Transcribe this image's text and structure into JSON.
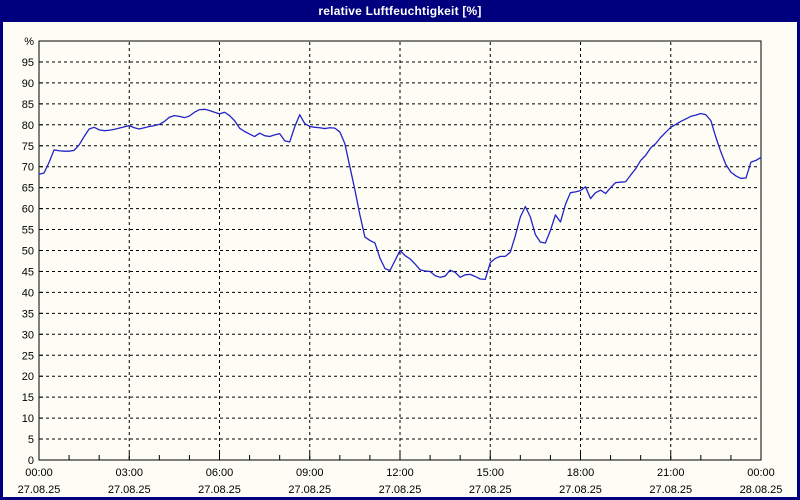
{
  "window": {
    "title": "relative Luftfeuchtigkeit [%]"
  },
  "colors": {
    "title_bar_bg": "#00007f",
    "title_text": "#ffffff",
    "window_border": "#00007f",
    "background": "#fdfdf6",
    "plot_frame": "#000000",
    "grid": "#000000",
    "axis_text": "#000000",
    "series_line": "#2323c8"
  },
  "chart_data": {
    "type": "line",
    "title": "relative Luftfeuchtigkeit [%]",
    "ylabel": "%",
    "ylim": [
      0,
      100
    ],
    "y_ticks": [
      0,
      5,
      10,
      15,
      20,
      25,
      30,
      35,
      40,
      45,
      50,
      55,
      60,
      65,
      70,
      75,
      80,
      85,
      90,
      95
    ],
    "grid": "dashed",
    "legend_position": "none",
    "x_range_hours": 24,
    "x_major_tick_hours": 3,
    "x_minor_tick_hours": 1,
    "x_ticks": [
      {
        "time": "00:00",
        "date": "27.08.25"
      },
      {
        "time": "03:00",
        "date": "27.08.25"
      },
      {
        "time": "06:00",
        "date": "27.08.25"
      },
      {
        "time": "09:00",
        "date": "27.08.25"
      },
      {
        "time": "12:00",
        "date": "27.08.25"
      },
      {
        "time": "15:00",
        "date": "27.08.25"
      },
      {
        "time": "18:00",
        "date": "27.08.25"
      },
      {
        "time": "21:00",
        "date": "27.08.25"
      },
      {
        "time": "00:00",
        "date": "28.08.25"
      }
    ],
    "sample_interval_minutes": 10,
    "series": [
      {
        "name": "relative Luftfeuchtigkeit",
        "unit": "%",
        "values": [
          68.2,
          68.5,
          71.0,
          74.0,
          73.8,
          73.7,
          73.7,
          73.9,
          75.2,
          77.2,
          79.0,
          79.4,
          78.8,
          78.6,
          78.7,
          78.9,
          79.2,
          79.5,
          79.8,
          79.3,
          79.0,
          79.3,
          79.6,
          79.8,
          80.1,
          80.8,
          81.8,
          82.2,
          82.0,
          81.7,
          82.1,
          83.0,
          83.6,
          83.7,
          83.4,
          83.0,
          82.6,
          83.0,
          82.2,
          81.0,
          79.2,
          78.4,
          77.8,
          77.2,
          78.0,
          77.4,
          77.2,
          77.6,
          77.9,
          76.2,
          75.9,
          79.5,
          82.4,
          80.3,
          79.6,
          79.4,
          79.3,
          79.1,
          79.3,
          79.2,
          78.3,
          75.5,
          70.0,
          64.5,
          58.5,
          53.2,
          52.4,
          51.8,
          48.2,
          45.7,
          45.2,
          47.6,
          50.0,
          48.8,
          48.0,
          46.8,
          45.4,
          45.1,
          45.0,
          44.0,
          43.6,
          43.9,
          45.3,
          44.8,
          43.6,
          44.2,
          44.3,
          43.8,
          43.2,
          43.1,
          47.1,
          48.1,
          48.6,
          48.6,
          49.6,
          53.5,
          58.0,
          60.5,
          58.0,
          53.8,
          52.0,
          51.8,
          54.8,
          58.5,
          56.8,
          61.0,
          63.8,
          64.0,
          64.3,
          65.2,
          62.4,
          63.8,
          64.4,
          63.6,
          65.0,
          66.2,
          66.3,
          66.4,
          68.0,
          69.5,
          71.5,
          72.7,
          74.5,
          75.5,
          77.0,
          78.2,
          79.4,
          80.1,
          80.8,
          81.4,
          82.0,
          82.3,
          82.7,
          82.4,
          81.0,
          77.0,
          73.5,
          70.5,
          68.7,
          67.8,
          67.2,
          67.3,
          71.1,
          71.5,
          72.2
        ]
      }
    ]
  }
}
